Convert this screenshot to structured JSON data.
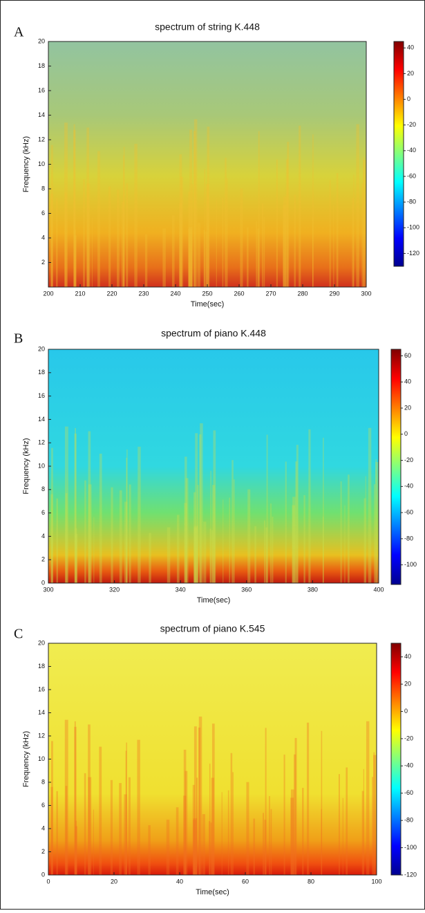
{
  "chart_data": [
    {
      "type": "spectrogram",
      "panel": "A",
      "title": "spectrum of string K.448",
      "xlabel": "Time(sec)",
      "ylabel": "Frequency (kHz)",
      "xlim": [
        200,
        300
      ],
      "xticks": [
        200,
        210,
        220,
        230,
        240,
        250,
        260,
        270,
        280,
        290,
        300
      ],
      "ylim": [
        0,
        20
      ],
      "yticks": [
        2,
        4,
        6,
        8,
        10,
        12,
        14,
        16,
        18,
        20
      ],
      "clim": [
        -130,
        45
      ],
      "cticks": [
        40,
        20,
        0,
        -20,
        -40,
        -60,
        -80,
        -100,
        -120
      ]
    },
    {
      "type": "spectrogram",
      "panel": "B",
      "title": "spectrum of piano K.448",
      "xlabel": "Time(sec)",
      "ylabel": "Frequency (kHz)",
      "xlim": [
        300,
        400
      ],
      "xticks": [
        300,
        320,
        340,
        360,
        380,
        400
      ],
      "ylim": [
        0,
        20
      ],
      "yticks": [
        0,
        2,
        4,
        6,
        8,
        10,
        12,
        14,
        16,
        18,
        20
      ],
      "clim": [
        -115,
        65
      ],
      "cticks": [
        60,
        40,
        20,
        0,
        -20,
        -40,
        -60,
        -80,
        -100
      ]
    },
    {
      "type": "spectrogram",
      "panel": "C",
      "title": "spectrum of piano K.545",
      "xlabel": "Time(sec)",
      "ylabel": "Frequency (kHz)",
      "xlim": [
        0,
        100
      ],
      "xticks": [
        0,
        20,
        40,
        60,
        80,
        100
      ],
      "ylim": [
        0,
        20
      ],
      "yticks": [
        0,
        2,
        4,
        6,
        8,
        10,
        12,
        14,
        16,
        18,
        20
      ],
      "clim": [
        -120,
        50
      ],
      "cticks": [
        40,
        20,
        0,
        -20,
        -40,
        -60,
        -80,
        -100,
        -120
      ]
    }
  ]
}
